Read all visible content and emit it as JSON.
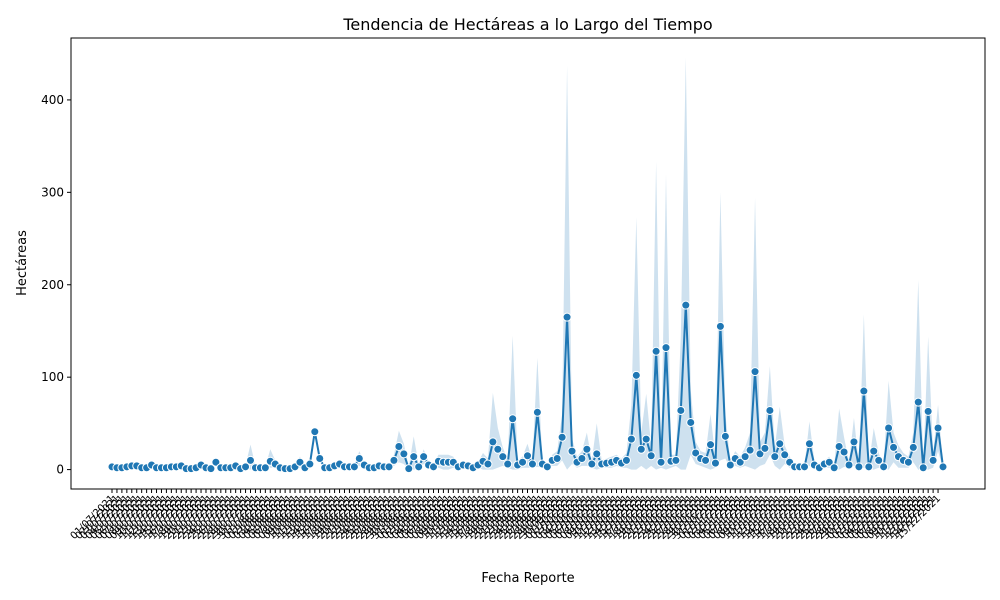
{
  "chart_data": {
    "type": "line",
    "title": "Tendencia de Hectáreas a lo Largo del Tiempo",
    "xlabel": "Fecha Reporte",
    "ylabel": "Hectáreas",
    "ylim": [
      -21,
      467
    ],
    "yticks": [
      0,
      100,
      200,
      300,
      400
    ],
    "grid": false,
    "legend": "none",
    "colors": {
      "line": "#1f77b4",
      "band": "#1f77b4",
      "marker_edge": "#ffffff"
    },
    "x_tick_labels": [
      "01/07/2021",
      "02/07/2021",
      "03/07/2021",
      "04/07/2021",
      "05/07/2021",
      "06/07/2021",
      "07/07/2021",
      "08/07/2021",
      "09/07/2021",
      "10/07/2021",
      "11/07/2021",
      "12/07/2021",
      "13/07/2021",
      "14/07/2021",
      "15/07/2021",
      "16/07/2021",
      "17/07/2021",
      "18/07/2021",
      "19/07/2021",
      "20/07/2021",
      "21/07/2021",
      "22/07/2021",
      "23/07/2021",
      "24/07/2021",
      "25/07/2021",
      "26/07/2021",
      "27/07/2021",
      "28/07/2021",
      "29/07/2021",
      "30/07/2021",
      "31/07/2021",
      "01/08/2021",
      "02/08/2021",
      "03/08/2021",
      "04/08/2021",
      "05/08/2021",
      "06/08/2021",
      "07/08/2021",
      "08/08/2021",
      "09/08/2021",
      "10/08/2021",
      "11/08/2021",
      "12/08/2021",
      "13/08/2021",
      "14/08/2021",
      "15/08/2021",
      "16/08/2021",
      "17/08/2021",
      "18/08/2021",
      "19/08/2021",
      "20/08/2021",
      "21/08/2021",
      "22/08/2021",
      "23/08/2021",
      "24/08/2021",
      "25/08/2021",
      "26/08/2021",
      "27/08/2021",
      "28/08/2021",
      "29/08/2021",
      "30/08/2021",
      "31/08/2021",
      "01/09/2021",
      "02/09/2021",
      "03/09/2021",
      "04/09/2021",
      "05/09/2021",
      "06/09/2021",
      "07/09/2021",
      "08/09/2021",
      "09/09/2021",
      "10/09/2021",
      "11/09/2021",
      "12/09/2021",
      "13/09/2021",
      "14/09/2021",
      "15/09/2021",
      "16/09/2021",
      "17/09/2021",
      "18/09/2021",
      "19/09/2021",
      "20/09/2021",
      "21/09/2021",
      "22/09/2021",
      "23/09/2021",
      "24/09/2021",
      "25/09/2021",
      "26/09/2021",
      "27/09/2021",
      "28/09/2021",
      "29/09/2021",
      "30/09/2021",
      "01/10/2021",
      "02/10/2021",
      "03/10/2021",
      "04/10/2021",
      "05/10/2021",
      "06/10/2021",
      "07/10/2021",
      "08/10/2021",
      "09/10/2021",
      "10/10/2021",
      "11/10/2021",
      "12/10/2021",
      "13/10/2021",
      "14/10/2021",
      "15/10/2021",
      "16/10/2021",
      "17/10/2021",
      "18/10/2021",
      "19/10/2021",
      "20/10/2021",
      "21/10/2021",
      "22/10/2021",
      "23/10/2021",
      "24/10/2021",
      "25/10/2021",
      "26/10/2021",
      "27/10/2021",
      "28/10/2021",
      "29/10/2021",
      "30/10/2021",
      "31/10/2021",
      "01/11/2021",
      "02/11/2021",
      "03/11/2021",
      "04/11/2021",
      "05/11/2021",
      "06/11/2021",
      "07/11/2021",
      "08/11/2021",
      "09/11/2021",
      "10/11/2021",
      "11/11/2021",
      "12/11/2021",
      "13/11/2021",
      "14/11/2021",
      "15/11/2021",
      "16/11/2021",
      "17/11/2021",
      "18/11/2021",
      "19/11/2021",
      "20/11/2021",
      "21/11/2021",
      "22/11/2021",
      "23/11/2021",
      "24/11/2021",
      "25/11/2021",
      "26/11/2021",
      "27/11/2021",
      "28/11/2021",
      "29/11/2021",
      "30/11/2021",
      "01/12/2021",
      "02/12/2021",
      "03/12/2021",
      "04/12/2021",
      "05/12/2021",
      "06/12/2021",
      "07/12/2021",
      "08/12/2021",
      "09/12/2021",
      "10/12/2021",
      "11/12/2021",
      "12/12/2021",
      "13/12/2021",
      "14/12/2021",
      "15/12/2021"
    ],
    "values": [
      3,
      2,
      2,
      3,
      4,
      4,
      2,
      2,
      5,
      2,
      2,
      2,
      3,
      3,
      4,
      1,
      1,
      2,
      5,
      2,
      1,
      8,
      2,
      2,
      2,
      4,
      1,
      3,
      10,
      2,
      2,
      2,
      9,
      6,
      2,
      1,
      1,
      3,
      8,
      2,
      6,
      41,
      12,
      2,
      2,
      4,
      6,
      3,
      3,
      3,
      12,
      5,
      2,
      2,
      4,
      3,
      3,
      10,
      25,
      17,
      1,
      14,
      3,
      14,
      5,
      3,
      9,
      8,
      8,
      8,
      3,
      5,
      4,
      2,
      5,
      9,
      6,
      30,
      22,
      14,
      6,
      55,
      5,
      8,
      15,
      6,
      62,
      6,
      3,
      10,
      12,
      35,
      165,
      20,
      8,
      12,
      22,
      6,
      17,
      6,
      7,
      8,
      10,
      7,
      10,
      33,
      102,
      22,
      33,
      15,
      128,
      8,
      132,
      9,
      10,
      64,
      178,
      51,
      18,
      12,
      10,
      27,
      7,
      155,
      36,
      5,
      12,
      8,
      14,
      21,
      106,
      17,
      23,
      64,
      14,
      28,
      16,
      8,
      3,
      3,
      3,
      28,
      5,
      2,
      6,
      8,
      2,
      25,
      19,
      5,
      30,
      3,
      85,
      3,
      20,
      10,
      3,
      45,
      24,
      14,
      10,
      8,
      24,
      73,
      2,
      63,
      10,
      45,
      3
    ],
    "ci_upper": [
      4,
      3,
      3,
      4,
      5,
      5,
      3,
      3,
      7,
      3,
      3,
      3,
      4,
      4,
      6,
      2,
      2,
      3,
      7,
      3,
      2,
      12,
      3,
      3,
      4,
      9,
      3,
      5,
      27,
      4,
      3,
      3,
      22,
      10,
      3,
      2,
      2,
      5,
      14,
      3,
      10,
      45,
      16,
      3,
      3,
      6,
      10,
      5,
      5,
      5,
      20,
      8,
      3,
      3,
      6,
      5,
      5,
      16,
      42,
      28,
      3,
      36,
      5,
      22,
      9,
      6,
      16,
      16,
      16,
      14,
      5,
      8,
      7,
      4,
      8,
      18,
      12,
      83,
      45,
      24,
      10,
      145,
      10,
      14,
      28,
      10,
      121,
      10,
      5,
      16,
      20,
      60,
      437,
      34,
      14,
      20,
      40,
      10,
      50,
      10,
      12,
      14,
      16,
      12,
      18,
      70,
      273,
      40,
      82,
      26,
      333,
      14,
      319,
      16,
      16,
      145,
      446,
      86,
      30,
      20,
      18,
      60,
      12,
      300,
      60,
      9,
      20,
      14,
      24,
      40,
      294,
      30,
      40,
      112,
      24,
      68,
      26,
      14,
      5,
      5,
      5,
      52,
      9,
      4,
      10,
      14,
      4,
      66,
      35,
      8,
      56,
      5,
      168,
      5,
      45,
      18,
      5,
      96,
      40,
      26,
      18,
      14,
      40,
      205,
      4,
      144,
      18,
      70,
      5
    ],
    "ci_lower": [
      2,
      1,
      1,
      2,
      3,
      3,
      1,
      1,
      3,
      1,
      1,
      1,
      2,
      2,
      2,
      0,
      0,
      1,
      3,
      1,
      0,
      4,
      1,
      1,
      0,
      1,
      0,
      1,
      0,
      0,
      1,
      1,
      2,
      2,
      1,
      0,
      0,
      1,
      2,
      1,
      2,
      37,
      8,
      1,
      1,
      2,
      2,
      1,
      1,
      1,
      4,
      2,
      1,
      1,
      2,
      1,
      1,
      4,
      8,
      6,
      0,
      0,
      1,
      6,
      1,
      0,
      2,
      0,
      0,
      2,
      1,
      2,
      1,
      0,
      2,
      0,
      0,
      0,
      2,
      4,
      2,
      0,
      0,
      2,
      2,
      2,
      3,
      2,
      1,
      4,
      4,
      10,
      0,
      6,
      2,
      4,
      4,
      2,
      0,
      2,
      2,
      2,
      4,
      2,
      2,
      0,
      0,
      4,
      0,
      4,
      0,
      2,
      0,
      2,
      4,
      0,
      0,
      16,
      6,
      4,
      2,
      0,
      2,
      10,
      12,
      1,
      4,
      2,
      4,
      2,
      0,
      4,
      6,
      16,
      4,
      0,
      6,
      2,
      1,
      1,
      1,
      4,
      1,
      0,
      2,
      2,
      0,
      0,
      3,
      2,
      4,
      1,
      2,
      1,
      0,
      2,
      1,
      0,
      8,
      2,
      2,
      2,
      8,
      0,
      0,
      0,
      2,
      20,
      1
    ]
  }
}
